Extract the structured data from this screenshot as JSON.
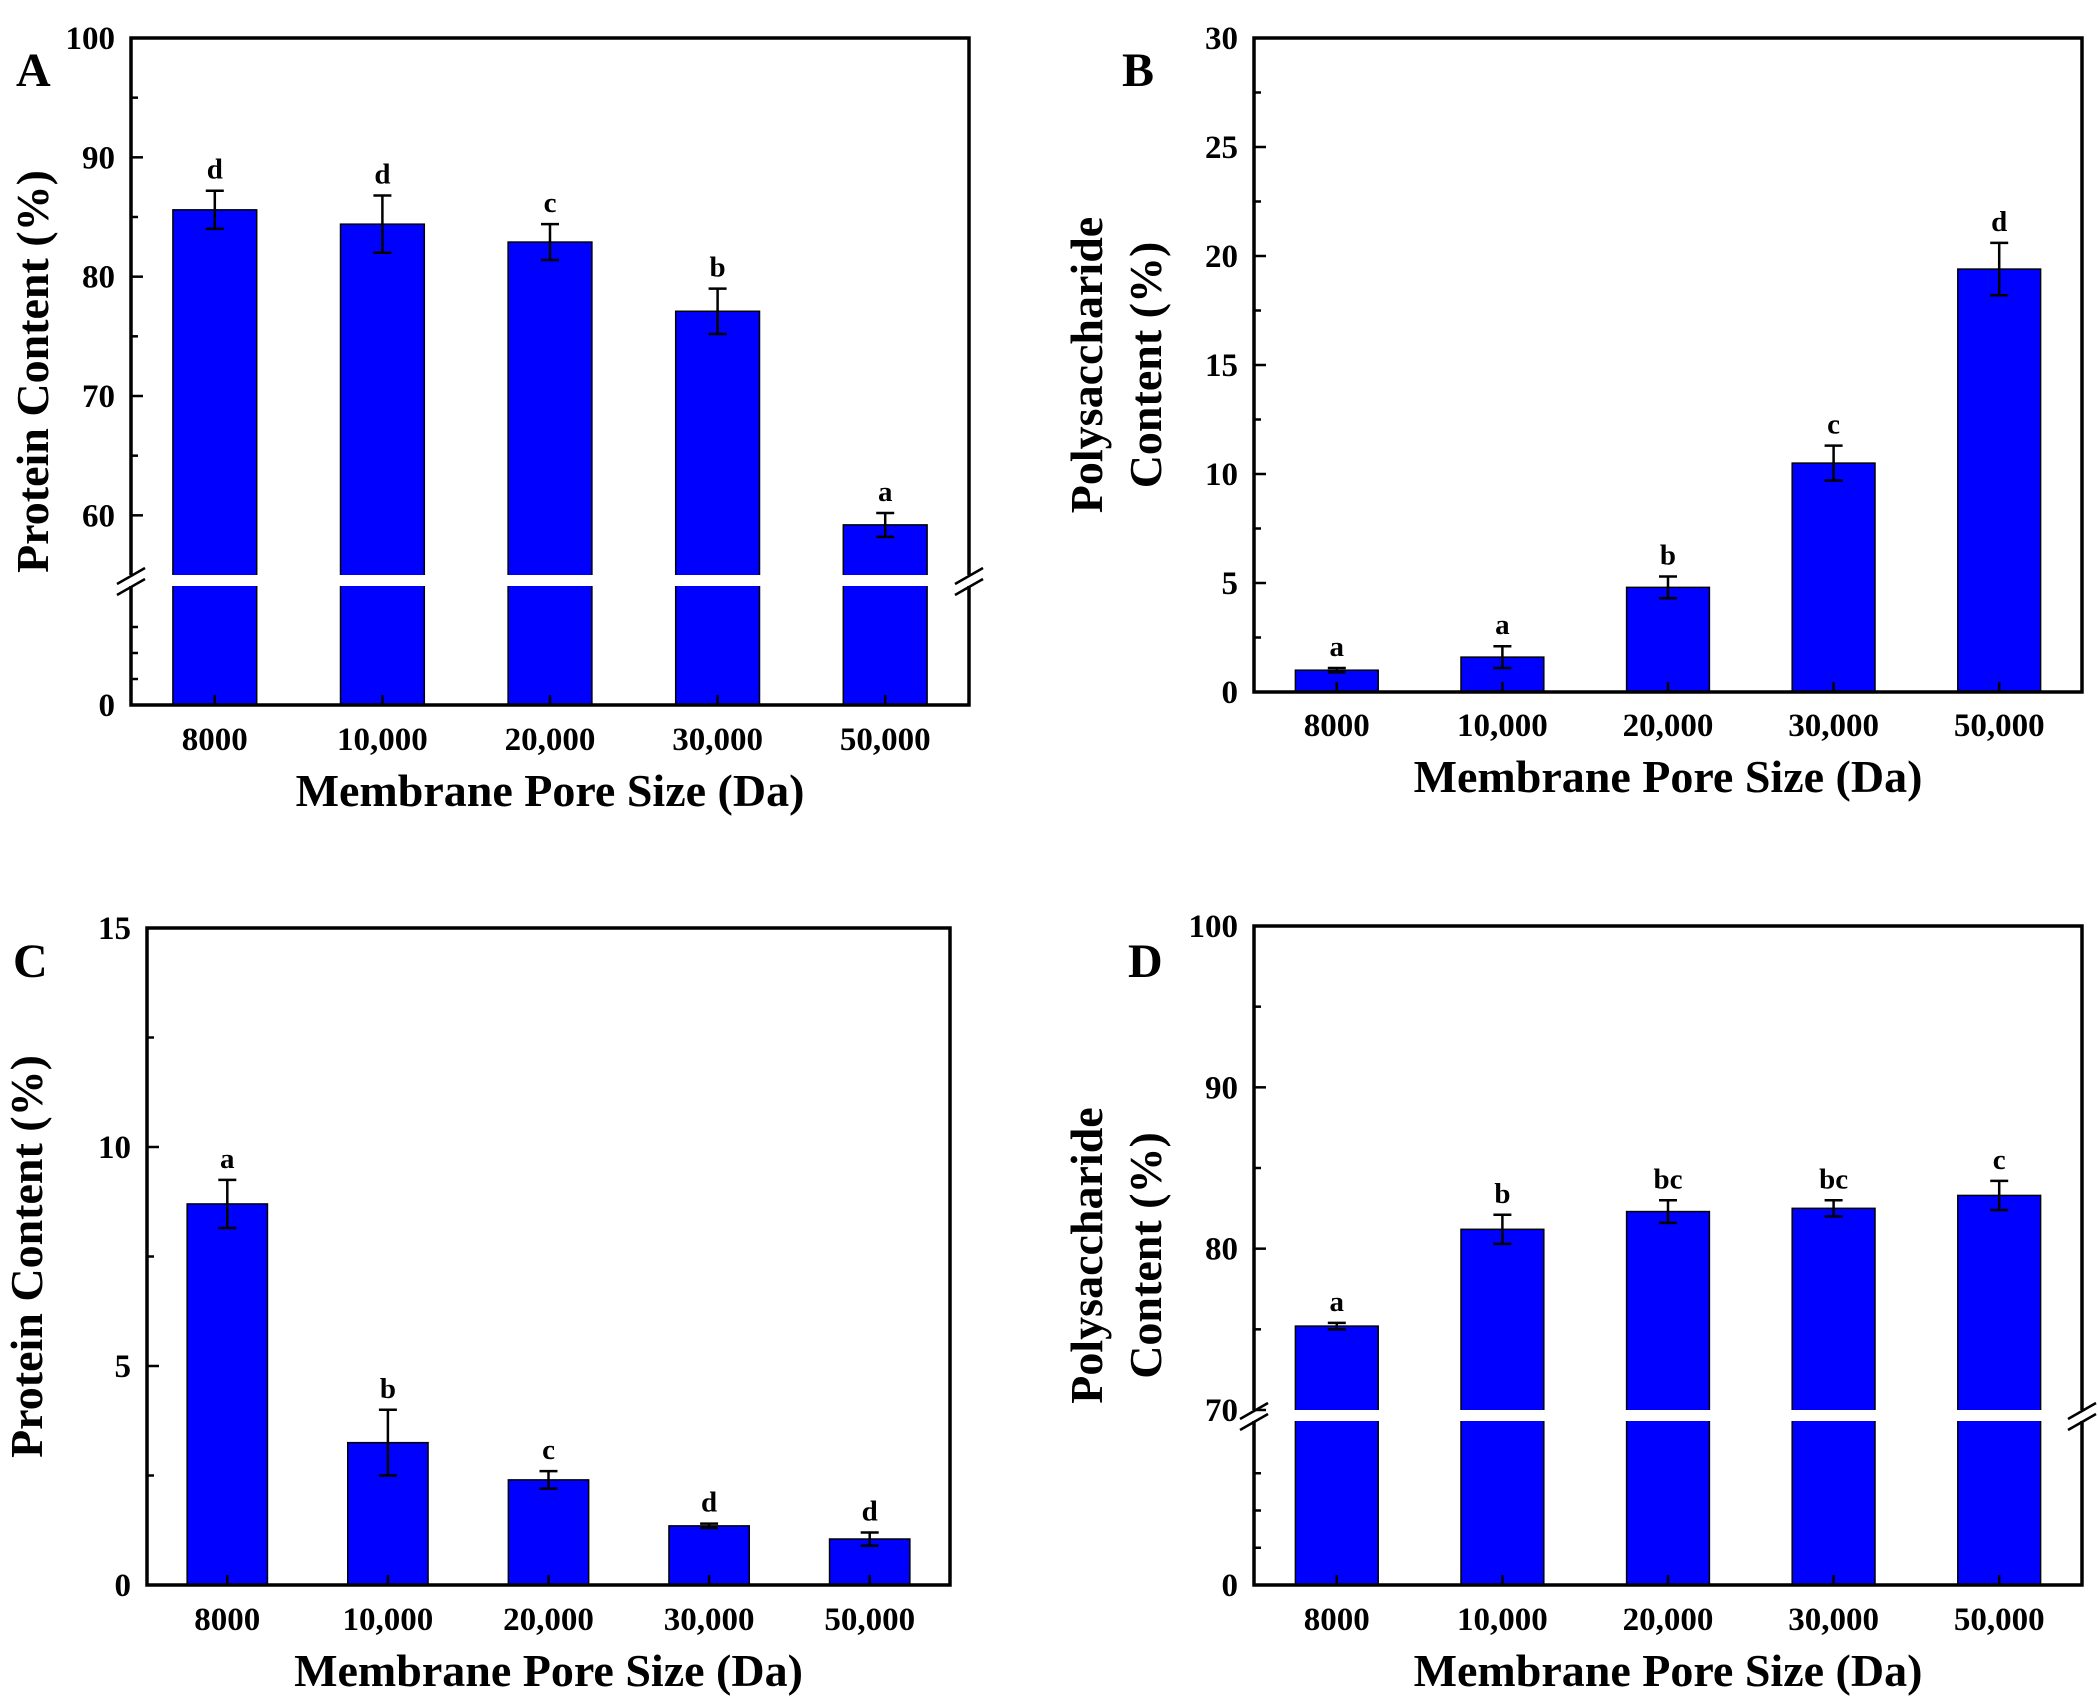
{
  "figure": {
    "bar_color": "#0000ff"
  },
  "chart_data": [
    {
      "panel": "A",
      "type": "bar",
      "categories": [
        "8000",
        "10,000",
        "20,000",
        "30,000",
        "50,000"
      ],
      "values": [
        85.6,
        84.4,
        82.9,
        77.1,
        59.2
      ],
      "errors": [
        1.6,
        2.4,
        1.5,
        1.9,
        1.0
      ],
      "significance": [
        "d",
        "d",
        "c",
        "b",
        "a"
      ],
      "xlabel": "Membrane Pore Size (Da)",
      "ylabel": "Protein Content (%)",
      "ylim": [
        0,
        100
      ],
      "axis_break": [
        0,
        55
      ],
      "yticks": [
        0,
        60,
        70,
        80,
        90,
        100
      ],
      "ytick_labels": [
        "0",
        "60",
        "70",
        "80",
        "90",
        "100"
      ]
    },
    {
      "panel": "B",
      "type": "bar",
      "categories": [
        "8000",
        "10,000",
        "20,000",
        "30,000",
        "50,000"
      ],
      "values": [
        1.0,
        1.6,
        4.8,
        10.5,
        19.4
      ],
      "errors": [
        0.1,
        0.5,
        0.5,
        0.8,
        1.2
      ],
      "significance": [
        "a",
        "a",
        "b",
        "c",
        "d"
      ],
      "xlabel": "Membrane Pore Size (Da)",
      "ylabel": [
        "Polysaccharide",
        "Content (%)"
      ],
      "ylim": [
        0,
        30
      ],
      "yticks": [
        0,
        5,
        10,
        15,
        20,
        25,
        30
      ],
      "ytick_labels": [
        "0",
        "5",
        "10",
        "15",
        "20",
        "25",
        "30"
      ]
    },
    {
      "panel": "C",
      "type": "bar",
      "categories": [
        "8000",
        "10,000",
        "20,000",
        "30,000",
        "50,000"
      ],
      "values": [
        8.7,
        3.25,
        2.4,
        1.35,
        1.05
      ],
      "errors": [
        0.55,
        0.75,
        0.2,
        0.05,
        0.15
      ],
      "significance": [
        "a",
        "b",
        "c",
        "d",
        "d"
      ],
      "xlabel": "Membrane Pore Size (Da)",
      "ylabel": "Protein Content (%)",
      "ylim": [
        0,
        15
      ],
      "yticks": [
        0,
        5,
        10,
        15
      ],
      "ytick_labels": [
        "0",
        "5",
        "10",
        "15"
      ]
    },
    {
      "panel": "D",
      "type": "bar",
      "categories": [
        "8000",
        "10,000",
        "20,000",
        "30,000",
        "50,000"
      ],
      "values": [
        75.2,
        81.2,
        82.3,
        82.5,
        83.3
      ],
      "errors": [
        0.2,
        0.9,
        0.7,
        0.5,
        0.9
      ],
      "significance": [
        "a",
        "b",
        "bc",
        "bc",
        "c"
      ],
      "xlabel": "Membrane Pore Size (Da)",
      "ylabel": [
        "Polysaccharide",
        "Content (%)"
      ],
      "ylim": [
        0,
        100
      ],
      "axis_break": [
        0,
        70
      ],
      "yticks": [
        0,
        70,
        80,
        90,
        100
      ],
      "ytick_labels": [
        "0",
        "70",
        "80",
        "90",
        "100"
      ]
    }
  ]
}
